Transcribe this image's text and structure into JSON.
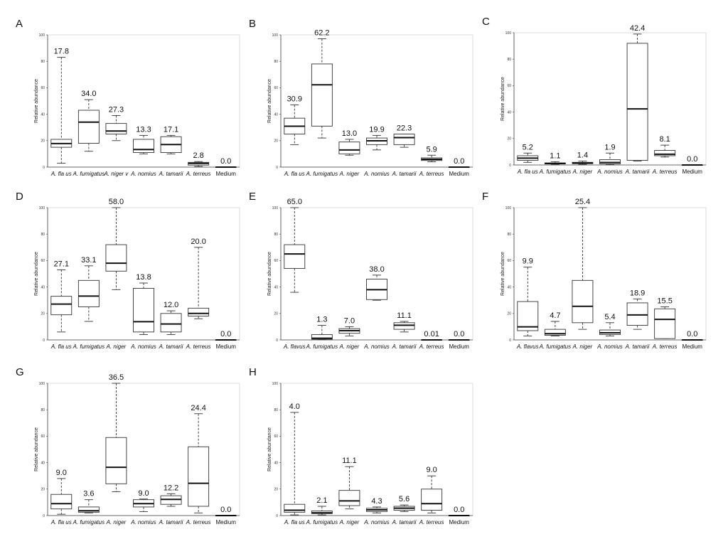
{
  "chart_data": [
    {
      "panel": "A",
      "type": "box",
      "ylabel": "Relative abundance",
      "ylim": [
        0,
        100
      ],
      "yticks": [
        "0",
        "20",
        "40",
        "60",
        "80",
        "100"
      ],
      "categories": [
        "A. fla us",
        "A. fumigatus",
        "A. niger v",
        "A. nomius",
        "A. tamarii",
        "A. terreus",
        "Medium"
      ],
      "labels": [
        "17.8",
        "34.0",
        "27.3",
        "13.3",
        "17.1",
        "2.8",
        "0.0"
      ],
      "boxes": [
        {
          "min": 3,
          "q1": 15,
          "median": 17.8,
          "q3": 21,
          "max": 83
        },
        {
          "min": 12,
          "q1": 18,
          "median": 34,
          "q3": 43,
          "max": 51
        },
        {
          "min": 20,
          "q1": 25,
          "median": 27.3,
          "q3": 33,
          "max": 39
        },
        {
          "min": 10,
          "q1": 11,
          "median": 13.3,
          "q3": 21,
          "max": 24
        },
        {
          "min": 10,
          "q1": 11,
          "median": 17.1,
          "q3": 23,
          "max": 24
        },
        {
          "min": 0.5,
          "q1": 1.5,
          "median": 2.8,
          "q3": 3.6,
          "max": 4.2
        },
        {
          "min": 0,
          "q1": 0,
          "median": 0,
          "q3": 0,
          "max": 0
        }
      ]
    },
    {
      "panel": "B",
      "type": "box",
      "ylabel": "Relative abundance",
      "ylim": [
        0,
        100
      ],
      "yticks": [
        "0",
        "20",
        "40",
        "60",
        "80",
        "100"
      ],
      "categories": [
        "A. fla us",
        "A. fumigatus",
        "A. niger",
        "A. nomius",
        "A. tamarii",
        "A. terreus",
        "Medium"
      ],
      "labels": [
        "30.9",
        "62.2",
        "13.0",
        "19.9",
        "22.3",
        "5.9",
        "0.0"
      ],
      "boxes": [
        {
          "min": 17,
          "q1": 25,
          "median": 30.9,
          "q3": 37,
          "max": 47
        },
        {
          "min": 22,
          "q1": 31,
          "median": 62.2,
          "q3": 78,
          "max": 97
        },
        {
          "min": 9,
          "q1": 10,
          "median": 13,
          "q3": 19,
          "max": 21
        },
        {
          "min": 13,
          "q1": 17,
          "median": 19.9,
          "q3": 22,
          "max": 24
        },
        {
          "min": 15,
          "q1": 17,
          "median": 22.3,
          "q3": 25,
          "max": 25
        },
        {
          "min": 4,
          "q1": 5,
          "median": 5.9,
          "q3": 7,
          "max": 9
        },
        {
          "min": 0,
          "q1": 0,
          "median": 0,
          "q3": 0,
          "max": 0
        }
      ]
    },
    {
      "panel": "C",
      "type": "box",
      "ylabel": "Relative abundance",
      "ylim": [
        0,
        100
      ],
      "yticks": [
        "0",
        "20",
        "40",
        "60",
        "80",
        "100"
      ],
      "categories": [
        "A. fla us",
        "A. fumigatus",
        "A. niger",
        "A. nomius",
        "A. tamarii",
        "A. terreus",
        "Medium"
      ],
      "labels": [
        "5.2",
        "1.1",
        "1.4",
        "1.9",
        "42.4",
        "8.1",
        "0.0"
      ],
      "boxes": [
        {
          "min": 2,
          "q1": 3.5,
          "median": 5.2,
          "q3": 7,
          "max": 9
        },
        {
          "min": 0.5,
          "q1": 0.8,
          "median": 1.1,
          "q3": 1.6,
          "max": 2.5
        },
        {
          "min": 0.5,
          "q1": 1,
          "median": 1.4,
          "q3": 2,
          "max": 3
        },
        {
          "min": 0.2,
          "q1": 0.8,
          "median": 1.9,
          "q3": 4,
          "max": 9
        },
        {
          "min": 3,
          "q1": 3.5,
          "median": 42.4,
          "q3": 92,
          "max": 99
        },
        {
          "min": 6,
          "q1": 7,
          "median": 8.1,
          "q3": 11,
          "max": 15
        },
        {
          "min": 0,
          "q1": 0,
          "median": 0,
          "q3": 0,
          "max": 0
        }
      ]
    },
    {
      "panel": "D",
      "type": "box",
      "ylabel": "Relative abundance",
      "ylim": [
        0,
        100
      ],
      "yticks": [
        "0",
        "20",
        "40",
        "60",
        "80",
        "100"
      ],
      "categories": [
        "A. fla us",
        "A. fumigatus",
        "A. niger",
        "A. nomius",
        "A. tamarii",
        "A. terreus",
        "Medium"
      ],
      "labels": [
        "27.1",
        "33.1",
        "58.0",
        "13.8",
        "12.0",
        "20.0",
        "0.0"
      ],
      "boxes": [
        {
          "min": 6,
          "q1": 19,
          "median": 27.1,
          "q3": 33,
          "max": 53
        },
        {
          "min": 14,
          "q1": 25,
          "median": 33.1,
          "q3": 45,
          "max": 56
        },
        {
          "min": 38,
          "q1": 52,
          "median": 58,
          "q3": 72,
          "max": 100
        },
        {
          "min": 4,
          "q1": 6,
          "median": 13.8,
          "q3": 39,
          "max": 43
        },
        {
          "min": 4,
          "q1": 6,
          "median": 12,
          "q3": 20,
          "max": 22
        },
        {
          "min": 16,
          "q1": 18,
          "median": 20,
          "q3": 24,
          "max": 70
        },
        {
          "min": 0,
          "q1": 0,
          "median": 0,
          "q3": 0,
          "max": 0
        }
      ]
    },
    {
      "panel": "E",
      "type": "box",
      "ylabel": "Relative abundance",
      "ylim": [
        0,
        100
      ],
      "yticks": [
        "0",
        "20",
        "40",
        "60",
        "80",
        "100"
      ],
      "categories": [
        "A. flavus",
        "A. fumigatus",
        "A. niger",
        "A. nomius",
        "A. tamarii",
        "A. terreus",
        "Medium"
      ],
      "labels": [
        "65.0",
        "1.3",
        "7.0",
        "38.0",
        "11.1",
        "0.01",
        "0.0"
      ],
      "boxes": [
        {
          "min": 36,
          "q1": 54,
          "median": 65,
          "q3": 72,
          "max": 100
        },
        {
          "min": 0.2,
          "q1": 0.5,
          "median": 1.3,
          "q3": 4,
          "max": 11
        },
        {
          "min": 3,
          "q1": 5,
          "median": 7,
          "q3": 8.5,
          "max": 10
        },
        {
          "min": 30,
          "q1": 30.5,
          "median": 38,
          "q3": 46,
          "max": 49
        },
        {
          "min": 6,
          "q1": 8,
          "median": 11.1,
          "q3": 13,
          "max": 14
        },
        {
          "min": 0,
          "q1": 0,
          "median": 0.01,
          "q3": 0.05,
          "max": 0.1
        },
        {
          "min": 0,
          "q1": 0,
          "median": 0,
          "q3": 0,
          "max": 0
        }
      ]
    },
    {
      "panel": "F",
      "type": "box",
      "ylabel": "Relative abundance",
      "ylim": [
        0,
        100
      ],
      "yticks": [
        "0",
        "20",
        "40",
        "60",
        "80",
        "100"
      ],
      "categories": [
        "A. flavus",
        "A. fumigatus",
        "A. niger",
        "A. nomius",
        "A. tamarii",
        "A. terreus",
        "Medium"
      ],
      "labels": [
        "9.9",
        "4.7",
        "25.4",
        "5.4",
        "18.9",
        "15.5",
        "0.0"
      ],
      "boxes": [
        {
          "min": 3,
          "q1": 7,
          "median": 9.9,
          "q3": 29,
          "max": 55
        },
        {
          "min": 3,
          "q1": 3.5,
          "median": 4.7,
          "q3": 8,
          "max": 14
        },
        {
          "min": 8,
          "q1": 13,
          "median": 25.4,
          "q3": 45,
          "max": 100
        },
        {
          "min": 3,
          "q1": 4,
          "median": 5.4,
          "q3": 7.5,
          "max": 13
        },
        {
          "min": 8,
          "q1": 11,
          "median": 18.9,
          "q3": 28,
          "max": 31
        },
        {
          "min": 1,
          "q1": 1,
          "median": 15.5,
          "q3": 23.5,
          "max": 25
        },
        {
          "min": 0,
          "q1": 0,
          "median": 0,
          "q3": 0,
          "max": 0
        }
      ]
    },
    {
      "panel": "G",
      "type": "box",
      "ylabel": "Relative abundance",
      "ylim": [
        0,
        100
      ],
      "yticks": [
        "0",
        "20",
        "40",
        "60",
        "80",
        "100"
      ],
      "categories": [
        "A. fla us",
        "A. fumigatus",
        "A. niger",
        "A. nomius",
        "A. tamarii",
        "A. terreus",
        "Medium"
      ],
      "labels": [
        "9.0",
        "3.6",
        "36.5",
        "9.0",
        "12.2",
        "24.4",
        "0.0"
      ],
      "boxes": [
        {
          "min": 1,
          "q1": 5,
          "median": 9,
          "q3": 16,
          "max": 28
        },
        {
          "min": 2,
          "q1": 2.5,
          "median": 3.6,
          "q3": 6.5,
          "max": 12
        },
        {
          "min": 18,
          "q1": 24,
          "median": 36.5,
          "q3": 59,
          "max": 100
        },
        {
          "min": 3,
          "q1": 6.5,
          "median": 9,
          "q3": 12,
          "max": 12.5
        },
        {
          "min": 7,
          "q1": 8.5,
          "median": 12.2,
          "q3": 15,
          "max": 16.5
        },
        {
          "min": 2,
          "q1": 7,
          "median": 24.4,
          "q3": 52,
          "max": 77
        },
        {
          "min": 0,
          "q1": 0,
          "median": 0,
          "q3": 0,
          "max": 0
        }
      ]
    },
    {
      "panel": "H",
      "type": "box",
      "ylabel": "Relative abundance",
      "ylim": [
        0,
        100
      ],
      "yticks": [
        "0",
        "20",
        "40",
        "60",
        "80",
        "100"
      ],
      "categories": [
        "A. fla us",
        "A. fumigatus",
        "A. niger",
        "A. nomius",
        "A. tamarii",
        "A. terreus",
        "Medium"
      ],
      "labels": [
        "4.0",
        "2.1",
        "11.1",
        "4.3",
        "5.6",
        "9.0",
        "0.0"
      ],
      "boxes": [
        {
          "min": 0.5,
          "q1": 2.5,
          "median": 4,
          "q3": 8.5,
          "max": 78
        },
        {
          "min": 0.5,
          "q1": 1.5,
          "median": 2.1,
          "q3": 3.5,
          "max": 7
        },
        {
          "min": 5,
          "q1": 7.5,
          "median": 11.1,
          "q3": 19,
          "max": 37
        },
        {
          "min": 2,
          "q1": 3,
          "median": 4.3,
          "q3": 5.5,
          "max": 6.5
        },
        {
          "min": 3,
          "q1": 4,
          "median": 5.6,
          "q3": 7,
          "max": 8
        },
        {
          "min": 2,
          "q1": 4,
          "median": 9,
          "q3": 20,
          "max": 30
        },
        {
          "min": 0,
          "q1": 0,
          "median": 0,
          "q3": 0,
          "max": 0
        }
      ]
    }
  ]
}
